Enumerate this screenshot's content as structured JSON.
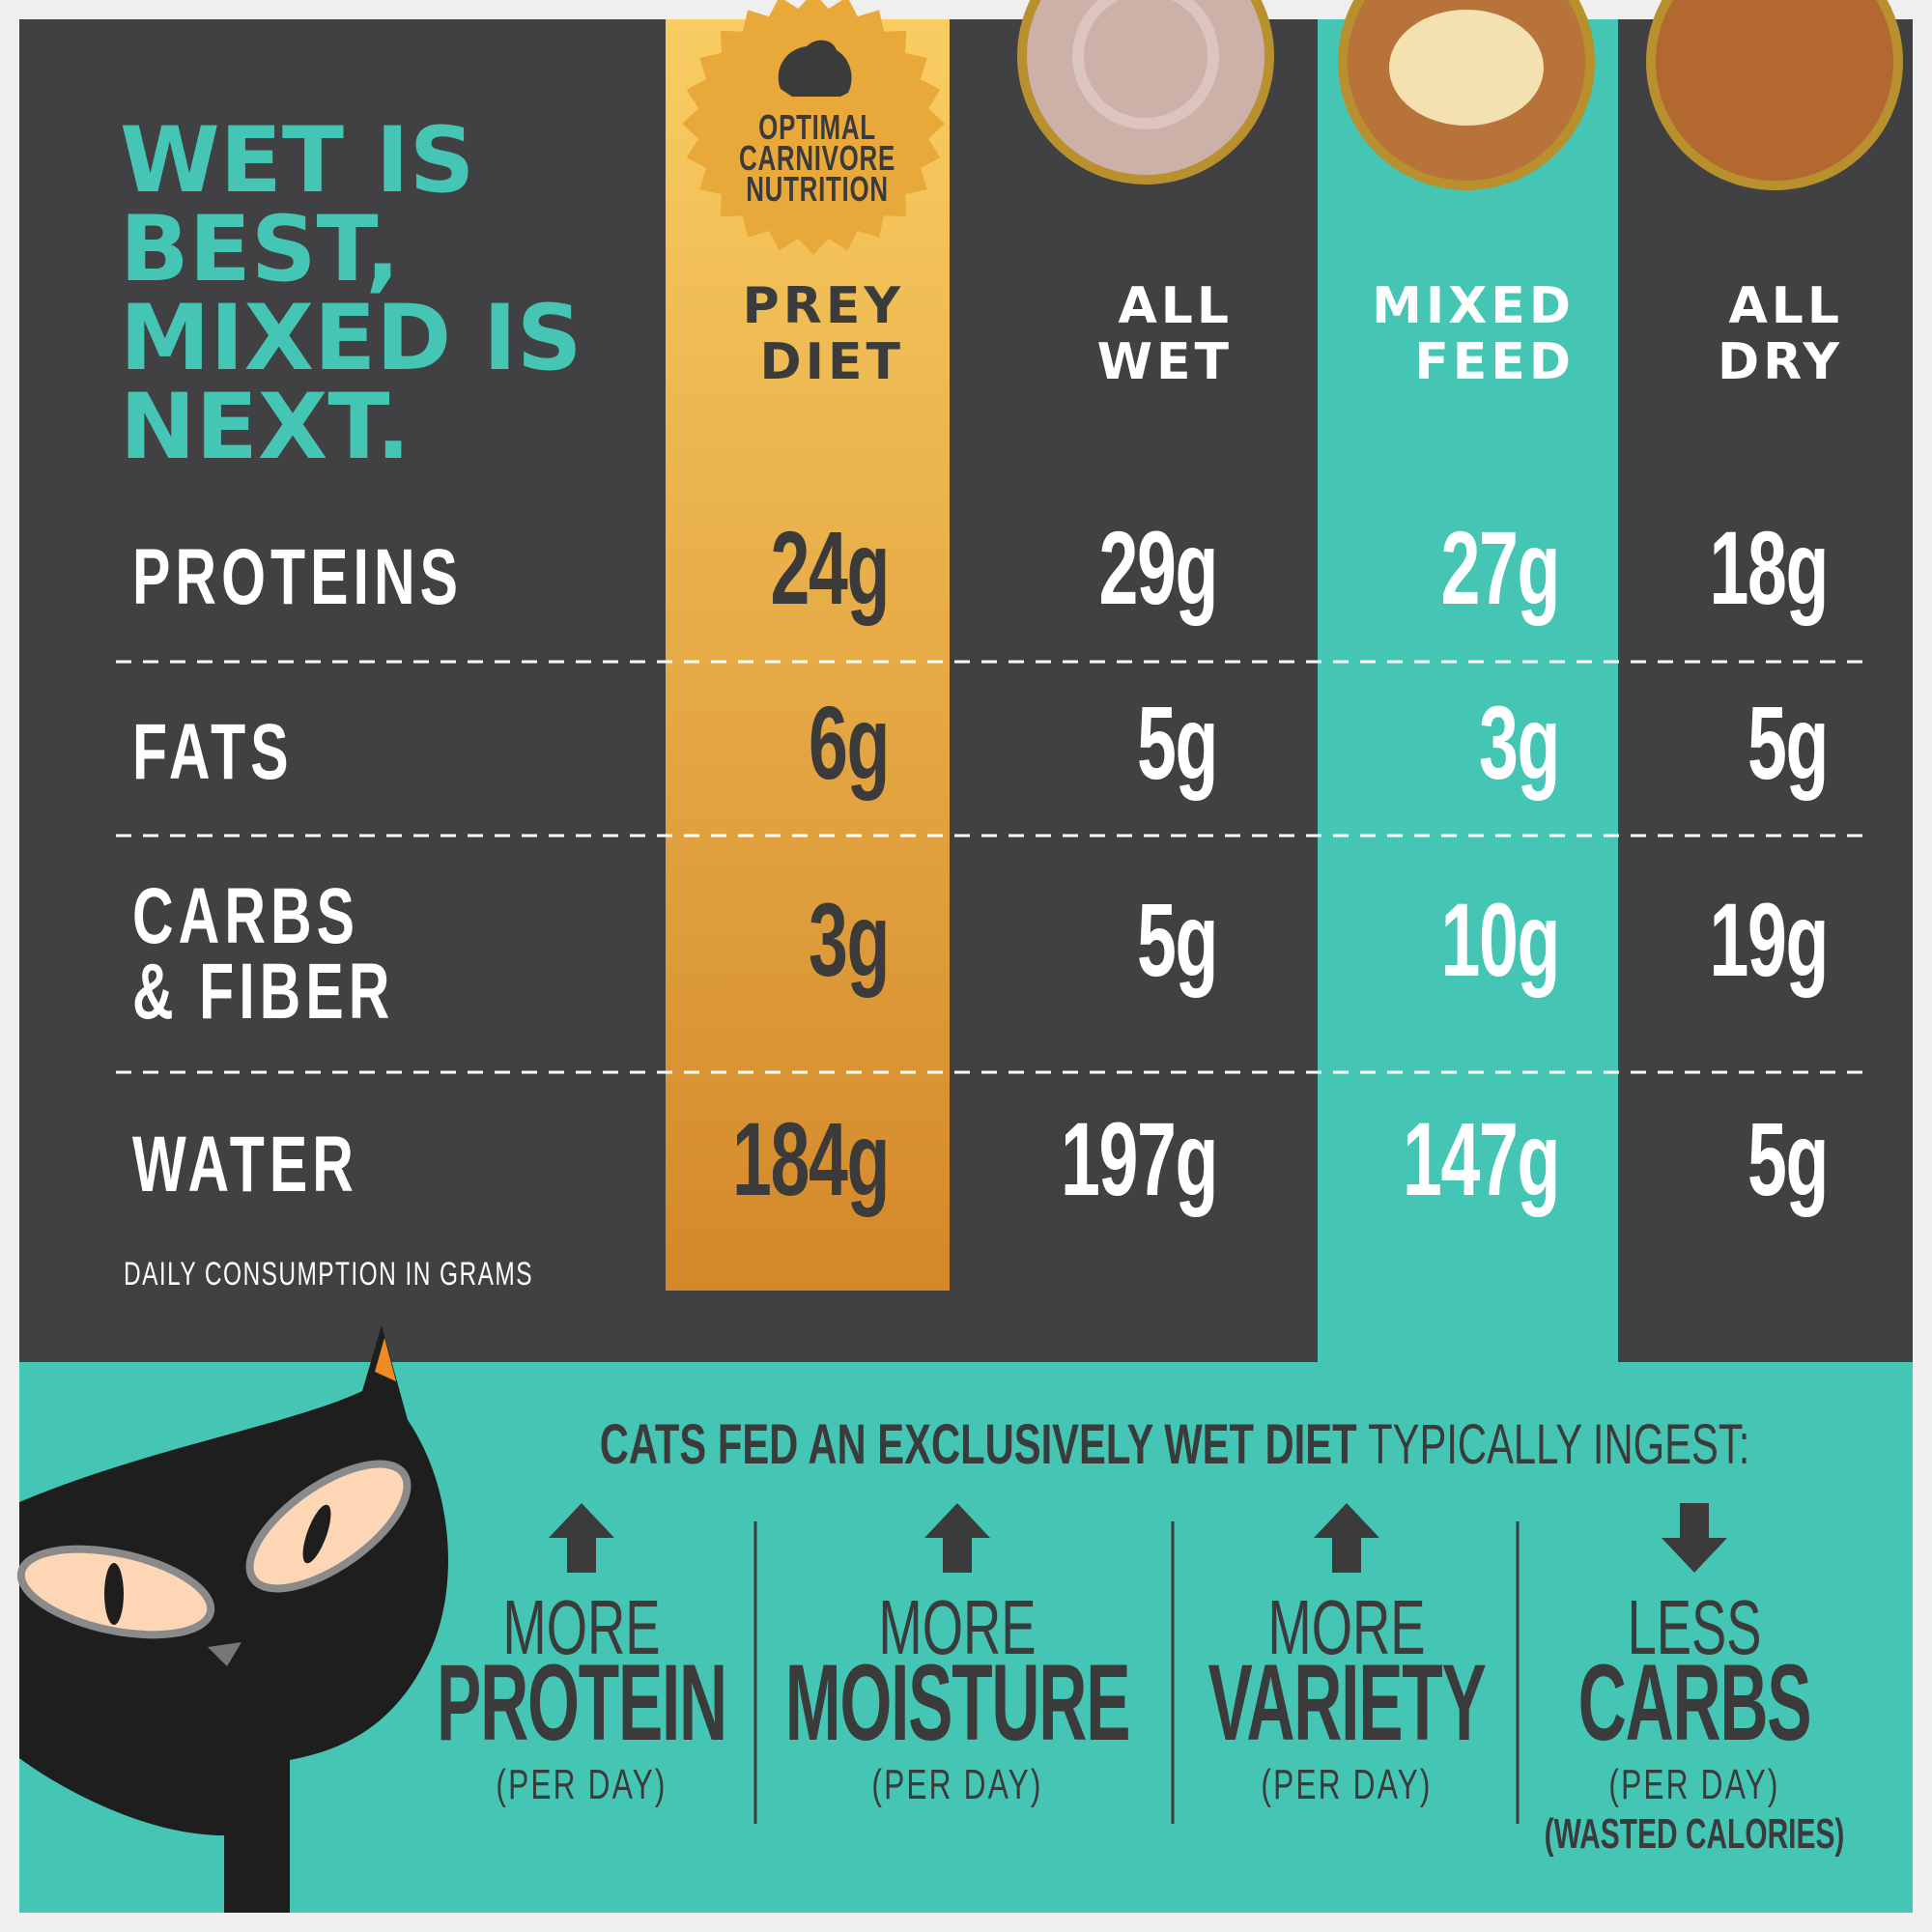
{
  "title": [
    "WET IS",
    "BEST,",
    "MIXED IS",
    "NEXT."
  ],
  "badge": [
    "OPTIMAL",
    "CARNIVORE",
    "NUTRITION"
  ],
  "columns": [
    [
      "PREY",
      "DIET"
    ],
    [
      "ALL",
      "WET"
    ],
    [
      "MIXED",
      "FEED"
    ],
    [
      "ALL",
      "DRY"
    ]
  ],
  "rows": [
    {
      "label": [
        "PROTEINS"
      ],
      "values": [
        "24g",
        "29g",
        "27g",
        "18g"
      ]
    },
    {
      "label": [
        "FATS"
      ],
      "values": [
        "6g",
        "5g",
        "3g",
        "5g"
      ]
    },
    {
      "label": [
        "CARBS",
        "& FIBER"
      ],
      "values": [
        "3g",
        "5g",
        "10g",
        "19g"
      ]
    },
    {
      "label": [
        "WATER"
      ],
      "values": [
        "184g",
        "197g",
        "147g",
        "5g"
      ]
    }
  ],
  "footnote": "DAILY CONSUMPTION IN GRAMS",
  "headline": {
    "bold": "CATS FED AN EXCLUSIVELY WET DIET",
    "regular": "TYPICALLY INGEST:"
  },
  "benefits": [
    {
      "direction": "up",
      "line1": "MORE",
      "line2": "PROTEIN",
      "note": "(PER DAY)"
    },
    {
      "direction": "up",
      "line1": "MORE",
      "line2": "MOISTURE",
      "note": "(PER DAY)"
    },
    {
      "direction": "up",
      "line1": "MORE",
      "line2": "VARIETY",
      "note": "(PER DAY)"
    },
    {
      "direction": "down",
      "line1": "LESS",
      "line2": "CARBS",
      "note": "(PER DAY)",
      "extra": "(WASTED CALORIES)"
    }
  ]
}
